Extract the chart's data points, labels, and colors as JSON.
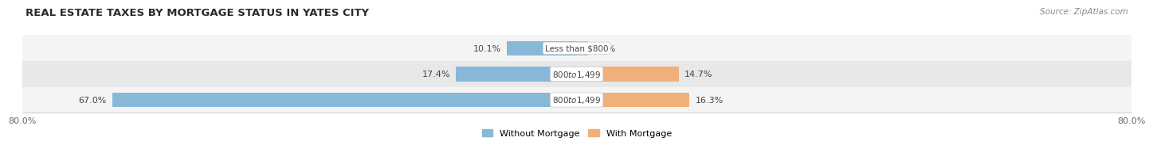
{
  "title": "REAL ESTATE TAXES BY MORTGAGE STATUS IN YATES CITY",
  "source": "Source: ZipAtlas.com",
  "rows": [
    {
      "label": "Less than $800",
      "without_mortgage": 10.1,
      "with_mortgage": 1.6
    },
    {
      "label": "$800 to $1,499",
      "without_mortgage": 17.4,
      "with_mortgage": 14.7
    },
    {
      "label": "$800 to $1,499",
      "without_mortgage": 67.0,
      "with_mortgage": 16.3
    }
  ],
  "x_min": -80.0,
  "x_max": 80.0,
  "x_left_label": "80.0%",
  "x_right_label": "80.0%",
  "color_without": "#88b8d8",
  "color_with": "#f0b07a",
  "row_bg_colors": [
    "#f4f4f4",
    "#e8e8e8",
    "#f4f4f4"
  ],
  "legend_without": "Without Mortgage",
  "legend_with": "With Mortgage",
  "bar_height": 0.56,
  "title_fontsize": 9.5,
  "source_fontsize": 7.5,
  "label_fontsize": 8,
  "axis_fontsize": 8
}
